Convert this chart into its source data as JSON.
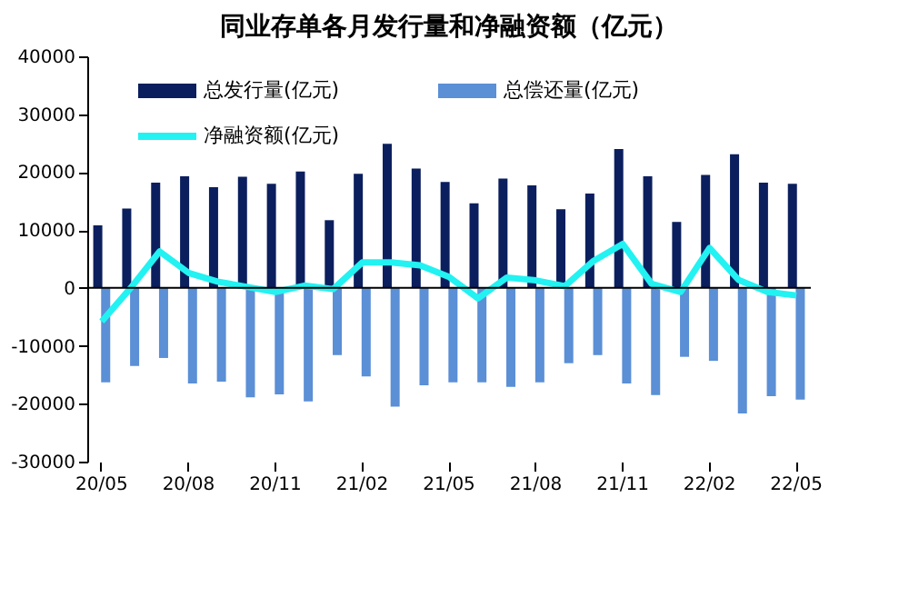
{
  "chart_data": {
    "type": "bar",
    "title": "同业存单各月发行量和净融资额（亿元）",
    "categories": [
      "20/05",
      null,
      null,
      "20/08",
      null,
      null,
      "20/11",
      null,
      null,
      "21/02",
      null,
      null,
      "21/05",
      null,
      null,
      "21/08",
      null,
      null,
      "21/11",
      null,
      null,
      "22/02",
      null,
      null,
      "22/05"
    ],
    "series": [
      {
        "name": "总发行量(亿元)",
        "color": "#0b1f5e",
        "values": [
          10800,
          13700,
          18200,
          19300,
          17400,
          19200,
          18000,
          20100,
          11700,
          19700,
          24900,
          20600,
          18300,
          14600,
          18900,
          17700,
          13600,
          16300,
          24000,
          19300,
          11400,
          19500,
          23100,
          18200,
          18000
        ]
      },
      {
        "name": "总偿还量(亿元)",
        "color": "#5b8fd6",
        "values": [
          -16300,
          -13500,
          -12100,
          -16500,
          -16200,
          -18900,
          -18400,
          -19600,
          -11600,
          -15300,
          -20500,
          -16800,
          -16300,
          -16300,
          -17100,
          -16300,
          -13000,
          -11600,
          -16500,
          -18500,
          -11900,
          -12600,
          -21700,
          -18700,
          -19300
        ]
      },
      {
        "name": "净融资额(亿元)",
        "type": "line",
        "color": "#22f2f2",
        "values": [
          -5800,
          0,
          6300,
          2600,
          1100,
          200,
          -700,
          400,
          -200,
          4400,
          4400,
          3900,
          1900,
          -1800,
          1800,
          1300,
          300,
          4700,
          7600,
          700,
          -700,
          6900,
          1400,
          -700,
          -1300
        ]
      }
    ],
    "ylim": [
      -30000,
      40000
    ],
    "yticks": [
      -30000,
      -20000,
      -10000,
      0,
      10000,
      20000,
      30000,
      40000
    ],
    "ref_lines": [
      {
        "axis": "y",
        "value": 0,
        "color": "#000000"
      }
    ],
    "grid": false,
    "legend": "top",
    "marker": "none",
    "line_style": "solid"
  }
}
